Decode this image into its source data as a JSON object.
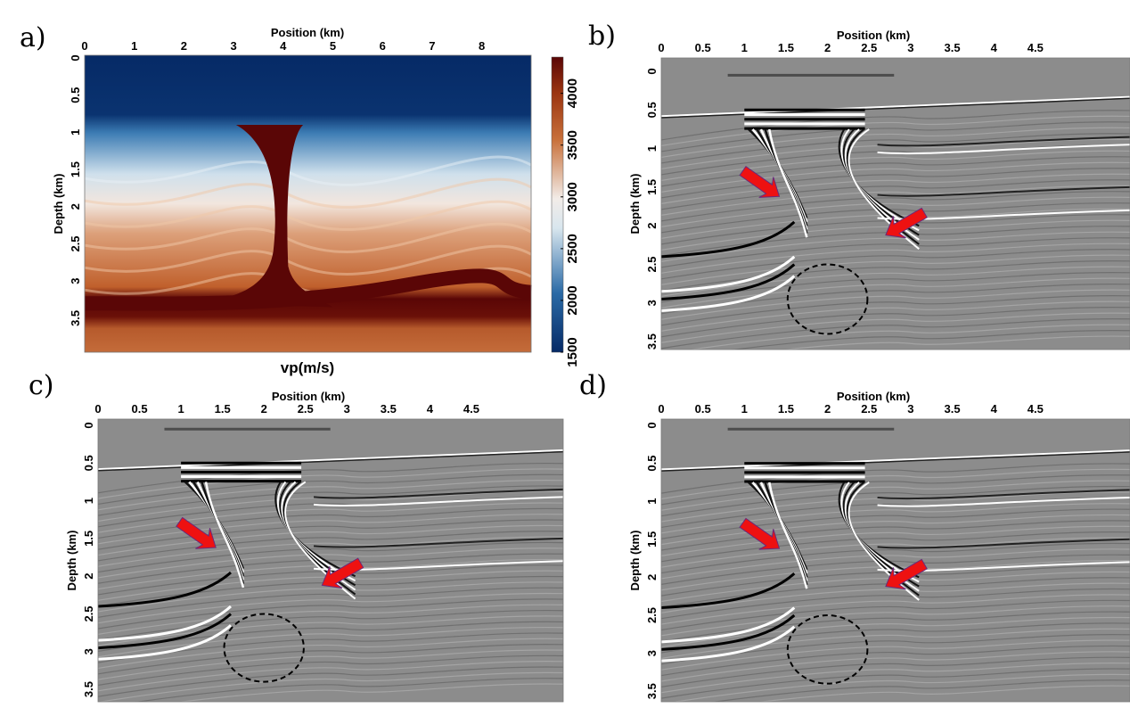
{
  "panels": [
    {
      "id": "a",
      "label": "a)",
      "xlabel": "Position (km)",
      "ylabel": "Depth (km)",
      "xticks": [
        "0",
        "1",
        "2",
        "3",
        "4",
        "5",
        "6",
        "7",
        "8"
      ],
      "yticks": [
        "0",
        "0.5",
        "1",
        "1.5",
        "2",
        "2.5",
        "3",
        "3.5"
      ],
      "colorbar": {
        "label": "vp(m/s)",
        "ticks": [
          "1500",
          "2000",
          "2500",
          "3000",
          "3500",
          "4000"
        ],
        "colors": [
          "#062a66",
          "#2a6aa6",
          "#d8e6ee",
          "#f2ece8",
          "#c8703a",
          "#9a3410",
          "#5a0606"
        ]
      }
    },
    {
      "id": "b",
      "label": "b)",
      "xlabel": "Position (km)",
      "ylabel": "Depth (km)",
      "xticks": [
        "0",
        "0.5",
        "1",
        "1.5",
        "2",
        "2.5",
        "3",
        "3.5",
        "4",
        "4.5"
      ],
      "yticks": [
        "0",
        "0.5",
        "1",
        "1.5",
        "2",
        "2.5",
        "3",
        "3.5"
      ]
    },
    {
      "id": "c",
      "label": "c)",
      "xlabel": "Position (km)",
      "ylabel": "Depth (km)",
      "xticks": [
        "0",
        "0.5",
        "1",
        "1.5",
        "2",
        "2.5",
        "3",
        "3.5",
        "4",
        "4.5"
      ],
      "yticks": [
        "0",
        "0.5",
        "1",
        "1.5",
        "2",
        "2.5",
        "3",
        "3.5"
      ]
    },
    {
      "id": "d",
      "label": "d)",
      "xlabel": "Position (km)",
      "ylabel": "Depth (km)",
      "xticks": [
        "0",
        "0.5",
        "1",
        "1.5",
        "2",
        "2.5",
        "3",
        "3.5",
        "4",
        "4.5"
      ],
      "yticks": [
        "0",
        "0.5",
        "1",
        "1.5",
        "2",
        "2.5",
        "3",
        "3.5"
      ]
    }
  ],
  "colors": {
    "arrow": "#ee1111",
    "seismic_bg": "#8c8c8c",
    "salt": "#5a0606"
  }
}
